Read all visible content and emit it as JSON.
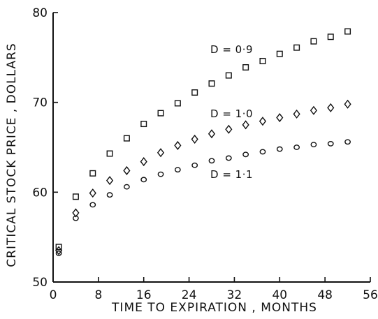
{
  "chart_data": {
    "type": "scatter",
    "xlabel": "TIME TO EXPIRATION , MONTHS",
    "ylabel": "CRITICAL STOCK PRICE , DOLLARS",
    "xlim": [
      0,
      56
    ],
    "ylim": [
      50,
      80
    ],
    "xticks": [
      0,
      8,
      16,
      24,
      32,
      40,
      48,
      56
    ],
    "yticks": [
      50,
      60,
      70,
      80
    ],
    "grid": false,
    "series": [
      {
        "name": "D = 0·9",
        "marker": "square",
        "x": [
          1,
          4,
          7,
          10,
          13,
          16,
          19,
          22,
          25,
          28,
          31,
          34,
          37,
          40,
          43,
          46,
          49,
          52
        ],
        "y": [
          53.9,
          59.5,
          62.1,
          64.3,
          66.0,
          67.6,
          68.8,
          69.9,
          71.1,
          72.1,
          73.0,
          73.9,
          74.6,
          75.4,
          76.1,
          76.8,
          77.3,
          77.9
        ]
      },
      {
        "name": "D = 1·0",
        "marker": "diamond",
        "x": [
          1,
          4,
          7,
          10,
          13,
          16,
          19,
          22,
          25,
          28,
          31,
          34,
          37,
          40,
          43,
          46,
          49,
          52
        ],
        "y": [
          53.5,
          57.7,
          59.9,
          61.3,
          62.4,
          63.4,
          64.4,
          65.2,
          65.9,
          66.5,
          67.0,
          67.5,
          67.9,
          68.3,
          68.7,
          69.1,
          69.4,
          69.8
        ]
      },
      {
        "name": "D = 1·1",
        "marker": "circle",
        "x": [
          1,
          4,
          7,
          10,
          13,
          16,
          19,
          22,
          25,
          28,
          31,
          34,
          37,
          40,
          43,
          46,
          49,
          52
        ],
        "y": [
          53.2,
          57.1,
          58.6,
          59.7,
          60.6,
          61.4,
          62.0,
          62.5,
          63.0,
          63.5,
          63.8,
          64.2,
          64.5,
          64.8,
          65.0,
          65.3,
          65.4,
          65.6
        ]
      }
    ]
  }
}
